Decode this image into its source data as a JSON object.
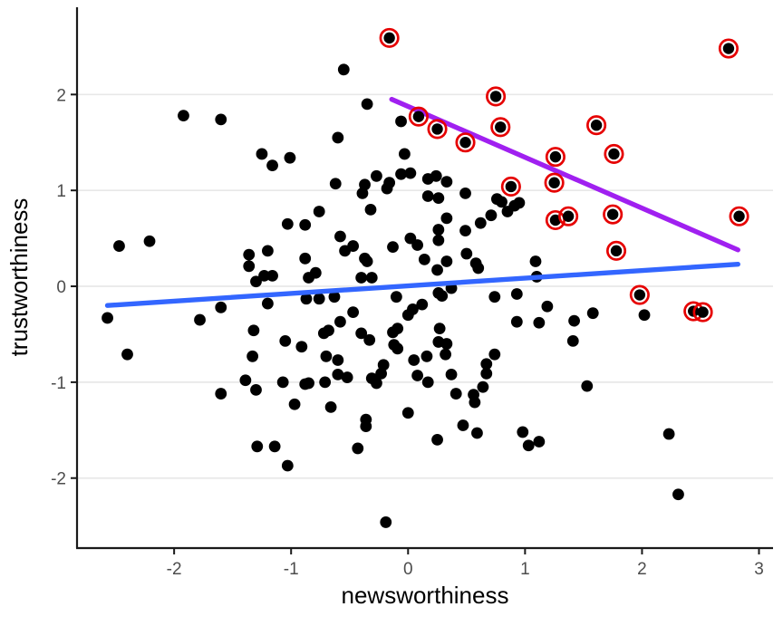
{
  "chart_data": {
    "type": "scatter",
    "title": "",
    "xlabel": "newsworthiness",
    "ylabel": "trustworthiness",
    "xlim": [
      -2.83,
      3.12
    ],
    "ylim": [
      -2.73,
      2.91
    ],
    "x_ticks": [
      -2,
      -1,
      0,
      1,
      2,
      3
    ],
    "y_ticks": [
      -2,
      -1,
      0,
      1,
      2
    ],
    "grid": "horizontal-major-only",
    "legend": "none",
    "colors": {
      "point": "#000000",
      "selected_ring": "#E60000",
      "fit_all": "#3366FF",
      "fit_selected": "#A020F0",
      "grid": "#E8E8E8",
      "axis": "#1A1A1A",
      "tick_label": "#4D4D4D"
    },
    "series": [
      {
        "name": "observed",
        "marker": "filled-black-dot",
        "points": [
          [
            -1.92,
            1.78
          ],
          [
            -1.6,
            1.74
          ],
          [
            -1.25,
            1.38
          ],
          [
            -1.16,
            1.26
          ],
          [
            -1.01,
            1.34
          ],
          [
            -0.55,
            2.26
          ],
          [
            -0.35,
            1.9
          ],
          [
            -0.06,
            1.72
          ],
          [
            -0.6,
            1.55
          ],
          [
            -0.03,
            1.38
          ],
          [
            -2.47,
            0.42
          ],
          [
            -2.21,
            0.47
          ],
          [
            -2.57,
            -0.33
          ],
          [
            -2.4,
            -0.71
          ],
          [
            -1.78,
            -0.35
          ],
          [
            -1.6,
            -0.22
          ],
          [
            -1.36,
            0.33
          ],
          [
            -1.36,
            0.21
          ],
          [
            -1.3,
            0.05
          ],
          [
            -1.2,
            0.37
          ],
          [
            -1.23,
            0.11
          ],
          [
            -1.16,
            0.11
          ],
          [
            -1.03,
            0.65
          ],
          [
            -0.88,
            0.64
          ],
          [
            -1.32,
            -0.46
          ],
          [
            -1.05,
            -0.57
          ],
          [
            -0.91,
            -0.63
          ],
          [
            -1.33,
            -0.73
          ],
          [
            -1.2,
            -0.18
          ],
          [
            -0.88,
            0.29
          ],
          [
            -0.87,
            -0.13
          ],
          [
            -0.62,
            1.07
          ],
          [
            -0.37,
            1.06
          ],
          [
            -0.27,
            1.15
          ],
          [
            -0.16,
            1.08
          ],
          [
            -0.06,
            1.17
          ],
          [
            0.02,
            1.18
          ],
          [
            0.17,
            1.12
          ],
          [
            0.24,
            1.15
          ],
          [
            0.33,
            1.09
          ],
          [
            -0.39,
            0.97
          ],
          [
            -0.18,
            1.02
          ],
          [
            0.17,
            0.94
          ],
          [
            0.26,
            0.92
          ],
          [
            0.49,
            0.97
          ],
          [
            -0.76,
            0.78
          ],
          [
            -0.32,
            0.8
          ],
          [
            -0.58,
            0.52
          ],
          [
            -0.47,
            0.42
          ],
          [
            -0.54,
            0.37
          ],
          [
            -0.13,
            0.41
          ],
          [
            0.02,
            0.5
          ],
          [
            0.08,
            0.43
          ],
          [
            0.26,
            0.48
          ],
          [
            0.26,
            0.59
          ],
          [
            0.33,
            0.71
          ],
          [
            0.49,
            0.58
          ],
          [
            0.5,
            0.34
          ],
          [
            0.62,
            0.66
          ],
          [
            0.71,
            0.74
          ],
          [
            0.76,
            0.91
          ],
          [
            0.8,
            0.88
          ],
          [
            0.85,
            0.78
          ],
          [
            0.91,
            0.84
          ],
          [
            0.95,
            0.87
          ],
          [
            -0.37,
            0.29
          ],
          [
            -0.35,
            0.26
          ],
          [
            -0.79,
            0.14
          ],
          [
            -0.85,
            0.09
          ],
          [
            -0.4,
            0.09
          ],
          [
            -0.31,
            0.09
          ],
          [
            0.14,
            0.28
          ],
          [
            0.25,
            0.17
          ],
          [
            0.33,
            0.26
          ],
          [
            0.58,
            0.24
          ],
          [
            0.6,
            0.19
          ],
          [
            1.09,
            0.26
          ],
          [
            1.1,
            0.1
          ],
          [
            0.26,
            -0.07
          ],
          [
            0.29,
            -0.1
          ],
          [
            0.37,
            -0.02
          ],
          [
            -0.1,
            -0.11
          ],
          [
            -0.63,
            -0.11
          ],
          [
            -0.76,
            -0.13
          ],
          [
            -0.58,
            -0.37
          ],
          [
            -0.47,
            -0.27
          ],
          [
            -0.68,
            -0.46
          ],
          [
            -0.72,
            -0.49
          ],
          [
            -0.4,
            -0.49
          ],
          [
            -0.33,
            -0.56
          ],
          [
            -0.13,
            -0.48
          ],
          [
            -0.09,
            -0.44
          ],
          [
            0.04,
            -0.24
          ],
          [
            0.12,
            -0.19
          ],
          [
            0.0,
            -0.3
          ],
          [
            0.27,
            -0.44
          ],
          [
            0.33,
            -0.6
          ],
          [
            0.26,
            -0.58
          ],
          [
            -0.12,
            -0.61
          ],
          [
            -0.09,
            -0.65
          ],
          [
            0.74,
            -0.11
          ],
          [
            0.93,
            -0.08
          ],
          [
            0.74,
            -0.71
          ],
          [
            0.93,
            -0.37
          ],
          [
            0.16,
            -0.73
          ],
          [
            0.05,
            -0.77
          ],
          [
            0.32,
            -0.71
          ],
          [
            -0.7,
            -0.73
          ],
          [
            -0.6,
            -0.77
          ],
          [
            -0.21,
            -0.82
          ],
          [
            0.67,
            -0.81
          ],
          [
            1.19,
            -0.21
          ],
          [
            1.12,
            -0.38
          ],
          [
            1.42,
            -0.36
          ],
          [
            1.58,
            -0.28
          ],
          [
            2.02,
            -0.3
          ],
          [
            1.41,
            -0.57
          ],
          [
            -1.6,
            -1.12
          ],
          [
            -1.39,
            -0.98
          ],
          [
            -1.3,
            -1.08
          ],
          [
            -1.07,
            -1.0
          ],
          [
            -0.88,
            -1.02
          ],
          [
            -0.97,
            -1.23
          ],
          [
            -1.29,
            -1.67
          ],
          [
            -1.14,
            -1.67
          ],
          [
            -1.03,
            -1.87
          ],
          [
            -0.85,
            -1.01
          ],
          [
            -0.71,
            -1.0
          ],
          [
            -0.6,
            -0.92
          ],
          [
            -0.52,
            -0.95
          ],
          [
            -0.31,
            -0.96
          ],
          [
            -0.27,
            -1.01
          ],
          [
            -0.23,
            -0.91
          ],
          [
            0.08,
            -0.93
          ],
          [
            0.17,
            -1.0
          ],
          [
            0.37,
            -0.92
          ],
          [
            0.67,
            -0.91
          ],
          [
            0.41,
            -1.12
          ],
          [
            0.56,
            -1.13
          ],
          [
            0.57,
            -1.21
          ],
          [
            0.64,
            -1.05
          ],
          [
            -0.66,
            -1.26
          ],
          [
            0.0,
            -1.32
          ],
          [
            -0.36,
            -1.39
          ],
          [
            -0.36,
            -1.46
          ],
          [
            -0.43,
            -1.69
          ],
          [
            0.25,
            -1.6
          ],
          [
            0.47,
            -1.45
          ],
          [
            0.59,
            -1.53
          ],
          [
            0.98,
            -1.52
          ],
          [
            1.03,
            -1.66
          ],
          [
            1.12,
            -1.62
          ],
          [
            -0.19,
            -2.46
          ],
          [
            1.53,
            -1.04
          ],
          [
            2.23,
            -1.54
          ],
          [
            2.31,
            -2.17
          ]
        ]
      },
      {
        "name": "selected",
        "marker": "black-dot-with-red-ring",
        "points": [
          [
            -0.16,
            2.59
          ],
          [
            2.74,
            2.48
          ],
          [
            0.09,
            1.77
          ],
          [
            0.25,
            1.64
          ],
          [
            0.49,
            1.5
          ],
          [
            0.75,
            1.98
          ],
          [
            0.79,
            1.66
          ],
          [
            1.61,
            1.68
          ],
          [
            1.76,
            1.38
          ],
          [
            1.26,
            1.35
          ],
          [
            0.88,
            1.04
          ],
          [
            1.25,
            1.08
          ],
          [
            1.26,
            0.69
          ],
          [
            1.37,
            0.73
          ],
          [
            1.75,
            0.75
          ],
          [
            2.83,
            0.73
          ],
          [
            1.78,
            0.37
          ],
          [
            1.98,
            -0.09
          ],
          [
            2.44,
            -0.26
          ],
          [
            2.52,
            -0.27
          ]
        ]
      }
    ],
    "lines": [
      {
        "name": "fit-all-points",
        "color_key": "fit_all",
        "x1": -2.57,
        "y1": -0.2,
        "x2": 2.82,
        "y2": 0.23
      },
      {
        "name": "fit-selected-points",
        "color_key": "fit_selected",
        "x1": -0.14,
        "y1": 1.95,
        "x2": 2.82,
        "y2": 0.38
      }
    ]
  }
}
